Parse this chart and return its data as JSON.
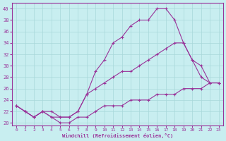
{
  "background_color": "#c8eef0",
  "grid_color": "#a8d8da",
  "line_color": "#993399",
  "xlabel": "Windchill (Refroidissement éolien,°C)",
  "xlim": [
    -0.5,
    23.5
  ],
  "ylim": [
    19.5,
    41.0
  ],
  "yticks": [
    20,
    22,
    24,
    26,
    28,
    30,
    32,
    34,
    36,
    38,
    40
  ],
  "xticks": [
    0,
    1,
    2,
    3,
    4,
    5,
    6,
    7,
    8,
    9,
    10,
    11,
    12,
    13,
    14,
    15,
    16,
    17,
    18,
    19,
    20,
    21,
    22,
    23
  ],
  "curve1_x": [
    0,
    1,
    2,
    3,
    4,
    5,
    6,
    7,
    8,
    9,
    10,
    11,
    12,
    13,
    14,
    15,
    16,
    17,
    18,
    19,
    20,
    21,
    22,
    23
  ],
  "curve1_y": [
    23,
    22,
    21,
    22,
    22,
    21,
    21,
    22,
    25,
    29,
    31,
    34,
    35,
    37,
    38,
    38,
    40,
    40,
    38,
    34,
    31,
    28,
    27,
    27
  ],
  "curve2_x": [
    0,
    1,
    2,
    3,
    4,
    5,
    6,
    7,
    8,
    9,
    10,
    11,
    12,
    13,
    14,
    15,
    16,
    17,
    18,
    19,
    20,
    21,
    22,
    23
  ],
  "curve2_y": [
    23,
    22,
    21,
    22,
    21,
    21,
    21,
    22,
    25,
    26,
    27,
    28,
    29,
    29,
    30,
    31,
    32,
    33,
    34,
    34,
    31,
    30,
    27,
    27
  ],
  "curve3_x": [
    0,
    1,
    2,
    3,
    4,
    5,
    6,
    7,
    8,
    9,
    10,
    11,
    12,
    13,
    14,
    15,
    16,
    17,
    18,
    19,
    20,
    21,
    22,
    23
  ],
  "curve3_y": [
    23,
    22,
    21,
    22,
    21,
    20,
    20,
    21,
    21,
    22,
    23,
    23,
    23,
    24,
    24,
    24,
    25,
    25,
    25,
    26,
    26,
    26,
    27,
    27
  ]
}
